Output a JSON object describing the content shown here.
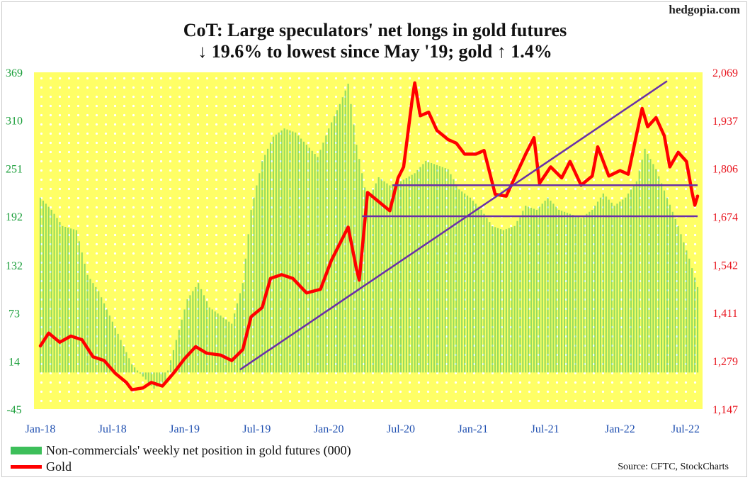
{
  "brand": "hedgopia.com",
  "title_line1": "CoT: Large speculators' net longs in gold futures",
  "title_line2": "↓ 19.6% to lowest since May '19; gold ↑ 1.4%",
  "legend_bars": "Non-commercials' weekly net position in gold futures (000)",
  "legend_line": "Gold",
  "source": "Source: CFTC, StockCharts",
  "colors": {
    "background": "#ffff66",
    "dots": "#ffffff",
    "bars": "#3dbf5a",
    "gold_line": "#ff0000",
    "trendlines": "#6a2fa8",
    "left_axis": "#1a9e3a",
    "right_axis": "#e8141e",
    "x_axis": "#1f4fb0"
  },
  "chart_data": {
    "type": "bar+line",
    "x_tick_labels": [
      "Jan-18",
      "Jul-18",
      "Jan-19",
      "Jul-19",
      "Jan-20",
      "Jul-20",
      "Jan-21",
      "Jul-21",
      "Jan-22",
      "Jul-22"
    ],
    "x_range": [
      "2018-01-05",
      "2022-07-22"
    ],
    "left_axis": {
      "label": "Non-commercials' weekly net position in gold futures (000)",
      "ticks": [
        "369",
        "310",
        "251",
        "192",
        "132",
        "73",
        "14",
        "-45"
      ],
      "ylim": [
        -45,
        369
      ]
    },
    "right_axis": {
      "label": "Gold",
      "ticks": [
        "2,069",
        "1,937",
        "1,806",
        "1,674",
        "1,542",
        "1,411",
        "1,279",
        "1,147"
      ],
      "ylim": [
        1147,
        2069
      ]
    },
    "series": [
      {
        "name": "Non-commercials' weekly net position in gold futures (000)",
        "type": "bar",
        "axis": "left",
        "anchors": [
          [
            "2018-01-05",
            215
          ],
          [
            "2018-02-02",
            200
          ],
          [
            "2018-03-02",
            180
          ],
          [
            "2018-04-06",
            175
          ],
          [
            "2018-05-04",
            120
          ],
          [
            "2018-06-01",
            100
          ],
          [
            "2018-06-29",
            70
          ],
          [
            "2018-07-27",
            40
          ],
          [
            "2018-08-24",
            10
          ],
          [
            "2018-09-21",
            -5
          ],
          [
            "2018-10-19",
            -20
          ],
          [
            "2018-11-16",
            -10
          ],
          [
            "2018-12-14",
            40
          ],
          [
            "2019-01-11",
            90
          ],
          [
            "2019-02-08",
            110
          ],
          [
            "2019-03-08",
            80
          ],
          [
            "2019-04-05",
            70
          ],
          [
            "2019-05-03",
            60
          ],
          [
            "2019-05-31",
            110
          ],
          [
            "2019-06-21",
            200
          ],
          [
            "2019-07-19",
            260
          ],
          [
            "2019-08-16",
            290
          ],
          [
            "2019-09-13",
            300
          ],
          [
            "2019-10-11",
            295
          ],
          [
            "2019-11-08",
            280
          ],
          [
            "2019-12-06",
            265
          ],
          [
            "2020-01-03",
            300
          ],
          [
            "2020-01-31",
            330
          ],
          [
            "2020-02-21",
            355
          ],
          [
            "2020-03-13",
            280
          ],
          [
            "2020-04-10",
            210
          ],
          [
            "2020-05-08",
            240
          ],
          [
            "2020-06-05",
            230
          ],
          [
            "2020-07-03",
            235
          ],
          [
            "2020-08-07",
            245
          ],
          [
            "2020-09-04",
            260
          ],
          [
            "2020-10-02",
            255
          ],
          [
            "2020-10-30",
            250
          ],
          [
            "2020-11-27",
            225
          ],
          [
            "2020-12-25",
            215
          ],
          [
            "2021-01-22",
            200
          ],
          [
            "2021-02-19",
            180
          ],
          [
            "2021-03-19",
            175
          ],
          [
            "2021-04-16",
            180
          ],
          [
            "2021-05-14",
            205
          ],
          [
            "2021-06-11",
            200
          ],
          [
            "2021-07-09",
            215
          ],
          [
            "2021-08-06",
            200
          ],
          [
            "2021-09-03",
            195
          ],
          [
            "2021-10-01",
            190
          ],
          [
            "2021-10-29",
            200
          ],
          [
            "2021-11-26",
            220
          ],
          [
            "2021-12-24",
            205
          ],
          [
            "2022-01-21",
            215
          ],
          [
            "2022-02-18",
            235
          ],
          [
            "2022-03-11",
            275
          ],
          [
            "2022-04-08",
            250
          ],
          [
            "2022-05-06",
            215
          ],
          [
            "2022-06-03",
            180
          ],
          [
            "2022-07-01",
            140
          ],
          [
            "2022-07-22",
            105
          ]
        ]
      },
      {
        "name": "Gold",
        "type": "line",
        "axis": "right",
        "anchors": [
          [
            "2018-01-05",
            1320
          ],
          [
            "2018-01-26",
            1355
          ],
          [
            "2018-02-23",
            1330
          ],
          [
            "2018-03-23",
            1347
          ],
          [
            "2018-04-20",
            1337
          ],
          [
            "2018-05-18",
            1290
          ],
          [
            "2018-06-15",
            1280
          ],
          [
            "2018-07-13",
            1245
          ],
          [
            "2018-08-10",
            1220
          ],
          [
            "2018-08-24",
            1200
          ],
          [
            "2018-09-21",
            1205
          ],
          [
            "2018-10-12",
            1220
          ],
          [
            "2018-11-09",
            1210
          ],
          [
            "2018-12-07",
            1245
          ],
          [
            "2019-01-04",
            1285
          ],
          [
            "2019-02-01",
            1318
          ],
          [
            "2019-03-01",
            1300
          ],
          [
            "2019-04-05",
            1295
          ],
          [
            "2019-05-03",
            1280
          ],
          [
            "2019-05-31",
            1310
          ],
          [
            "2019-06-21",
            1400
          ],
          [
            "2019-07-19",
            1425
          ],
          [
            "2019-08-09",
            1505
          ],
          [
            "2019-09-06",
            1515
          ],
          [
            "2019-10-04",
            1505
          ],
          [
            "2019-11-08",
            1465
          ],
          [
            "2019-12-13",
            1475
          ],
          [
            "2020-01-10",
            1555
          ],
          [
            "2020-02-21",
            1645
          ],
          [
            "2020-03-13",
            1530
          ],
          [
            "2020-03-20",
            1500
          ],
          [
            "2020-04-10",
            1740
          ],
          [
            "2020-05-08",
            1715
          ],
          [
            "2020-06-05",
            1690
          ],
          [
            "2020-06-26",
            1780
          ],
          [
            "2020-07-10",
            1810
          ],
          [
            "2020-07-31",
            1990
          ],
          [
            "2020-08-07",
            2040
          ],
          [
            "2020-08-21",
            1950
          ],
          [
            "2020-09-11",
            1960
          ],
          [
            "2020-10-02",
            1910
          ],
          [
            "2020-10-30",
            1885
          ],
          [
            "2020-11-20",
            1875
          ],
          [
            "2020-12-11",
            1845
          ],
          [
            "2021-01-08",
            1845
          ],
          [
            "2021-01-29",
            1855
          ],
          [
            "2021-02-26",
            1735
          ],
          [
            "2021-03-26",
            1730
          ],
          [
            "2021-04-16",
            1780
          ],
          [
            "2021-05-14",
            1845
          ],
          [
            "2021-06-04",
            1890
          ],
          [
            "2021-06-18",
            1765
          ],
          [
            "2021-07-16",
            1810
          ],
          [
            "2021-08-13",
            1780
          ],
          [
            "2021-09-03",
            1825
          ],
          [
            "2021-10-01",
            1760
          ],
          [
            "2021-10-29",
            1785
          ],
          [
            "2021-11-12",
            1865
          ],
          [
            "2021-12-10",
            1785
          ],
          [
            "2022-01-07",
            1800
          ],
          [
            "2022-01-28",
            1790
          ],
          [
            "2022-02-18",
            1900
          ],
          [
            "2022-03-04",
            1970
          ],
          [
            "2022-03-18",
            1920
          ],
          [
            "2022-04-08",
            1945
          ],
          [
            "2022-04-29",
            1895
          ],
          [
            "2022-05-13",
            1810
          ],
          [
            "2022-06-03",
            1850
          ],
          [
            "2022-06-24",
            1825
          ],
          [
            "2022-07-08",
            1740
          ],
          [
            "2022-07-15",
            1705
          ],
          [
            "2022-07-22",
            1730
          ]
        ]
      }
    ],
    "annotations": [
      {
        "type": "trendline",
        "from": [
          "2019-05-24",
          1255
        ],
        "to": [
          "2022-05-06",
          2045
        ],
        "axis": "right"
      },
      {
        "type": "horizontal",
        "from": "2020-06-12",
        "to": "2022-07-22",
        "value": 1760,
        "axis": "right"
      },
      {
        "type": "horizontal",
        "from": "2020-03-27",
        "to": "2022-07-22",
        "value": 1675,
        "axis": "right"
      }
    ],
    "grid": false,
    "legend_position": "bottom-left"
  }
}
